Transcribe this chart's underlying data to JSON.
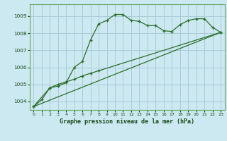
{
  "title": "Graphe pression niveau de la mer (hPa)",
  "bg_color": "#cce8f0",
  "grid_color": "#aaccd8",
  "line_color": "#2d6e2d",
  "border_color": "#6aaa6a",
  "xlim": [
    -0.5,
    23.5
  ],
  "ylim": [
    1003.5,
    1009.7
  ],
  "yticks": [
    1004,
    1005,
    1006,
    1007,
    1008,
    1009
  ],
  "xticks": [
    0,
    1,
    2,
    3,
    4,
    5,
    6,
    7,
    8,
    9,
    10,
    11,
    12,
    13,
    14,
    15,
    16,
    17,
    18,
    19,
    20,
    21,
    22,
    23
  ],
  "line1_x": [
    0,
    1,
    2,
    3,
    4,
    5,
    6,
    7,
    8,
    9,
    10,
    11,
    12,
    13,
    14,
    15,
    16,
    17,
    18,
    19,
    20,
    21,
    22,
    23
  ],
  "line1_y": [
    1003.7,
    1004.1,
    1004.8,
    1004.9,
    1005.1,
    1006.0,
    1006.35,
    1007.6,
    1008.55,
    1008.75,
    1009.1,
    1009.1,
    1008.75,
    1008.7,
    1008.45,
    1008.45,
    1008.15,
    1008.1,
    1008.5,
    1008.75,
    1008.85,
    1008.85,
    1008.35,
    1008.05
  ],
  "line2_x": [
    0,
    2,
    3,
    4,
    5,
    6,
    7,
    8,
    23
  ],
  "line2_y": [
    1003.7,
    1004.8,
    1005.0,
    1005.15,
    1005.3,
    1005.5,
    1005.65,
    1005.8,
    1008.05
  ],
  "line3_x": [
    0,
    23
  ],
  "line3_y": [
    1003.7,
    1008.05
  ]
}
